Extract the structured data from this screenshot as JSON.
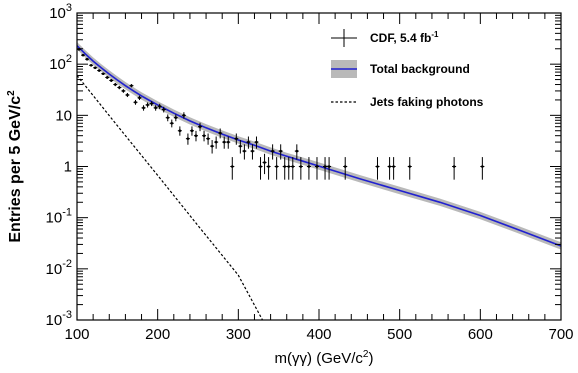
{
  "chart_data": {
    "type": "scatter",
    "xlabel_base": "m(γγ) (GeV/c",
    "xlabel_sup": "2",
    "xlabel_end": ")",
    "ylabel_base": "Entries per 5 GeV/c",
    "ylabel_sup": "2",
    "xlim": [
      100,
      700
    ],
    "ylim": [
      0.001,
      1000
    ],
    "yscale": "log",
    "x_ticks": [
      "100",
      "200",
      "300",
      "400",
      "500",
      "600",
      "700"
    ],
    "y_ticks": [
      {
        "base": "10",
        "exp": "-3",
        "value": 0.001
      },
      {
        "base": "10",
        "exp": "-2",
        "value": 0.01
      },
      {
        "base": "10",
        "exp": "-1",
        "value": 0.1
      },
      {
        "base": "1",
        "exp": "",
        "value": 1
      },
      {
        "base": "10",
        "exp": "",
        "value": 10
      },
      {
        "base": "10",
        "exp": "2",
        "value": 100
      },
      {
        "base": "10",
        "exp": "3",
        "value": 1000
      }
    ],
    "legend": {
      "placement": "top-right",
      "entries": [
        {
          "key": "data",
          "label_base": "CDF, 5.4 fb",
          "label_sup": "-1"
        },
        {
          "key": "background",
          "label_base": "Total background",
          "label_sup": ""
        },
        {
          "key": "jets",
          "label_base": "Jets faking photons",
          "label_sup": ""
        }
      ]
    },
    "series": [
      {
        "kind": "points",
        "x": [
          102.5,
          107.5,
          112.5,
          117.5,
          122.5,
          127.5,
          132.5,
          137.5,
          142.5,
          147.5,
          152.5,
          157.5,
          162.5,
          167.5,
          172.5,
          177.5,
          182.5,
          187.5,
          192.5,
          197.5,
          202.5,
          207.5,
          212.5,
          217.5,
          222.5,
          227.5,
          232.5,
          237.5,
          242.5,
          247.5,
          252.5,
          257.5,
          262.5,
          267.5,
          272.5,
          277.5,
          282.5,
          287.5,
          292.5,
          297.5,
          302.5,
          307.5,
          312.5,
          317.5,
          322.5,
          327.5,
          332.5,
          337.5,
          342.5,
          347.5,
          352.5,
          357.5,
          362.5,
          367.5,
          372.5,
          377.5,
          387.5,
          397.5,
          407.5,
          412.5,
          432.5,
          472.5,
          487.5,
          492.5,
          512.5,
          567.5,
          602.5
        ],
        "y": [
          195,
          150,
          125,
          95,
          85,
          75,
          65,
          55,
          48,
          40,
          35,
          30,
          25,
          38,
          18,
          22,
          14,
          16,
          17,
          14,
          15,
          13,
          9,
          7,
          9,
          5,
          10,
          3.5,
          5,
          4,
          6,
          4,
          3.5,
          2.5,
          3,
          4.5,
          3,
          3,
          1,
          3.5,
          2.5,
          2,
          3,
          2,
          3,
          1,
          1.2,
          1,
          2,
          1,
          2,
          1,
          1,
          1,
          2,
          1,
          1,
          1,
          1,
          1,
          1,
          1,
          1,
          1,
          1,
          1,
          1
        ]
      },
      {
        "kind": "band",
        "name": "Total background",
        "x": [
          100,
          110,
          120,
          130,
          140,
          150,
          160,
          170,
          180,
          190,
          200,
          220,
          240,
          260,
          280,
          300,
          320,
          340,
          360,
          380,
          400,
          450,
          500,
          550,
          600,
          650,
          700
        ],
        "y": [
          230,
          160,
          115,
          85,
          64,
          49,
          38,
          30,
          24,
          19.5,
          16,
          11,
          7.8,
          5.7,
          4.3,
          3.3,
          2.6,
          2.0,
          1.58,
          1.27,
          1.02,
          0.58,
          0.34,
          0.2,
          0.11,
          0.056,
          0.028
        ]
      },
      {
        "kind": "dashed",
        "name": "Jets faking photons",
        "x": [
          100,
          150,
          200,
          250,
          300,
          330
        ],
        "y": [
          60,
          6.3,
          0.67,
          0.07,
          0.0075,
          0.001
        ]
      }
    ]
  }
}
